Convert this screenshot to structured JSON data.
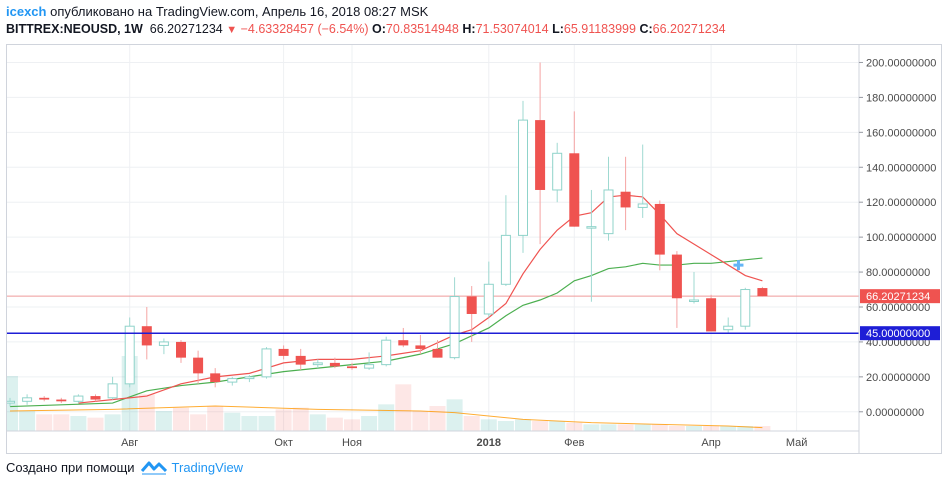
{
  "header": {
    "user": "icexch",
    "published_text": "опубликовано на TradingView.com, Апрель 16, 2018 08:27 MSK"
  },
  "symbol": {
    "name": "BITTREX:NEOUSD, 1W",
    "last": "66.20271234",
    "change": "−4.63328457 (−6.54%)",
    "o_label": "O:",
    "o": "70.83514948",
    "h_label": "H:",
    "h": "71.53074014",
    "l_label": "L:",
    "l": "65.91183999",
    "c_label": "C:",
    "c": "66.20271234"
  },
  "footer": {
    "created_with": "Создано при помощи",
    "brand": "TradingView"
  },
  "colors": {
    "up": "#26a69a",
    "down": "#ef5350",
    "ma_fast": "#ef5350",
    "ma_slow": "#4caf50",
    "support": "#1e1ed6",
    "accent": "#2196f3"
  },
  "price_labels": {
    "current": "66.20271234",
    "support": "45.00000000"
  },
  "chart_data": {
    "type": "candlestick",
    "y_axis": {
      "ticks": [
        0,
        20,
        40,
        60,
        80,
        100,
        120,
        140,
        160,
        180,
        200
      ],
      "tick_labels": [
        "0.00000000",
        "20.00000000",
        "40.00000000",
        "60.00000000",
        "80.00000000",
        "100.00000000",
        "120.00000000",
        "140.00000000",
        "160.00000000",
        "180.00000000",
        "200.00000000"
      ],
      "range": [
        -11,
        210
      ]
    },
    "x_axis": {
      "labels": [
        {
          "text": "Авг",
          "week": 7
        },
        {
          "text": "Окт",
          "week": 16
        },
        {
          "text": "Ноя",
          "week": 20
        },
        {
          "text": "2018",
          "week": 28,
          "bold": true
        },
        {
          "text": "Фев",
          "week": 33
        },
        {
          "text": "Апр",
          "week": 41
        },
        {
          "text": "Май",
          "week": 46
        }
      ]
    },
    "candles": [
      {
        "o": 5,
        "h": 8,
        "l": 3,
        "c": 6
      },
      {
        "o": 6,
        "h": 10,
        "l": 4,
        "c": 8
      },
      {
        "o": 8,
        "h": 9,
        "l": 6,
        "c": 7
      },
      {
        "o": 7,
        "h": 8,
        "l": 5,
        "c": 6
      },
      {
        "o": 6,
        "h": 10,
        "l": 5,
        "c": 9
      },
      {
        "o": 9,
        "h": 10,
        "l": 6,
        "c": 7
      },
      {
        "o": 8,
        "h": 20,
        "l": 7,
        "c": 16
      },
      {
        "o": 16,
        "h": 54,
        "l": 14,
        "c": 49
      },
      {
        "o": 49,
        "h": 60,
        "l": 30,
        "c": 38
      },
      {
        "o": 38,
        "h": 42,
        "l": 33,
        "c": 40
      },
      {
        "o": 40,
        "h": 41,
        "l": 28,
        "c": 31
      },
      {
        "o": 31,
        "h": 35,
        "l": 16,
        "c": 22
      },
      {
        "o": 22,
        "h": 25,
        "l": 14,
        "c": 17
      },
      {
        "o": 17,
        "h": 20,
        "l": 15,
        "c": 19
      },
      {
        "o": 19,
        "h": 21,
        "l": 17,
        "c": 20
      },
      {
        "o": 20,
        "h": 37,
        "l": 19,
        "c": 36
      },
      {
        "o": 36,
        "h": 38,
        "l": 30,
        "c": 32
      },
      {
        "o": 32,
        "h": 36,
        "l": 24,
        "c": 27
      },
      {
        "o": 27,
        "h": 30,
        "l": 25,
        "c": 28
      },
      {
        "o": 28,
        "h": 31,
        "l": 25,
        "c": 26
      },
      {
        "o": 26,
        "h": 28,
        "l": 24,
        "c": 25
      },
      {
        "o": 25,
        "h": 34,
        "l": 24,
        "c": 27
      },
      {
        "o": 27,
        "h": 43,
        "l": 26,
        "c": 41
      },
      {
        "o": 41,
        "h": 48,
        "l": 37,
        "c": 38
      },
      {
        "o": 38,
        "h": 44,
        "l": 33,
        "c": 36
      },
      {
        "o": 36,
        "h": 41,
        "l": 31,
        "c": 31
      },
      {
        "o": 31,
        "h": 77,
        "l": 30,
        "c": 66
      },
      {
        "o": 66,
        "h": 72,
        "l": 40,
        "c": 56
      },
      {
        "o": 56,
        "h": 86,
        "l": 54,
        "c": 73
      },
      {
        "o": 73,
        "h": 124,
        "l": 72,
        "c": 101
      },
      {
        "o": 101,
        "h": 178,
        "l": 91,
        "c": 167
      },
      {
        "o": 167,
        "h": 200,
        "l": 96,
        "c": 127
      },
      {
        "o": 127,
        "h": 154,
        "l": 120,
        "c": 148
      },
      {
        "o": 148,
        "h": 172,
        "l": 106,
        "c": 106
      },
      {
        "o": 106,
        "h": 127,
        "l": 63,
        "c": 106
      },
      {
        "o": 102,
        "h": 146,
        "l": 98,
        "c": 127
      },
      {
        "o": 126,
        "h": 146,
        "l": 104,
        "c": 117
      },
      {
        "o": 117,
        "h": 153,
        "l": 111,
        "c": 119
      },
      {
        "o": 119,
        "h": 121,
        "l": 81,
        "c": 90
      },
      {
        "o": 90,
        "h": 92,
        "l": 48,
        "c": 65
      },
      {
        "o": 64,
        "h": 80,
        "l": 62,
        "c": 64
      },
      {
        "o": 65,
        "h": 67,
        "l": 46,
        "c": 46
      },
      {
        "o": 47,
        "h": 54,
        "l": 45,
        "c": 49
      },
      {
        "o": 49,
        "h": 71,
        "l": 47,
        "c": 70
      },
      {
        "o": 70.84,
        "h": 71.53,
        "l": 65.91,
        "c": 66.2
      }
    ],
    "ma_fast": [
      [
        4,
        5
      ],
      [
        8,
        9
      ],
      [
        10,
        16
      ],
      [
        12,
        20
      ],
      [
        14,
        22
      ],
      [
        16,
        28
      ],
      [
        18,
        30
      ],
      [
        20,
        30
      ],
      [
        22,
        32
      ],
      [
        24,
        35
      ],
      [
        26,
        44
      ],
      [
        27,
        47
      ],
      [
        28,
        54
      ],
      [
        29,
        62
      ],
      [
        30,
        79
      ],
      [
        31,
        93
      ],
      [
        32,
        104
      ],
      [
        33,
        112
      ],
      [
        34,
        114
      ],
      [
        35,
        123
      ],
      [
        36,
        124
      ],
      [
        37,
        123
      ],
      [
        38,
        113
      ],
      [
        39,
        102
      ],
      [
        40,
        96
      ],
      [
        41,
        90
      ],
      [
        42,
        84
      ],
      [
        43,
        78
      ],
      [
        44,
        75
      ]
    ],
    "ma_slow": [
      [
        0,
        3
      ],
      [
        6,
        5
      ],
      [
        8,
        12
      ],
      [
        10,
        15
      ],
      [
        12,
        17
      ],
      [
        14,
        20
      ],
      [
        16,
        23
      ],
      [
        18,
        25
      ],
      [
        20,
        27
      ],
      [
        22,
        29
      ],
      [
        24,
        33
      ],
      [
        26,
        39
      ],
      [
        28,
        48
      ],
      [
        29,
        55
      ],
      [
        30,
        61
      ],
      [
        31,
        64
      ],
      [
        32,
        68
      ],
      [
        33,
        75
      ],
      [
        34,
        78
      ],
      [
        35,
        82
      ],
      [
        36,
        83
      ],
      [
        37,
        85
      ],
      [
        38,
        84
      ],
      [
        39,
        84
      ],
      [
        40,
        85
      ],
      [
        41,
        85
      ],
      [
        42,
        86
      ],
      [
        43,
        87
      ],
      [
        44,
        88
      ]
    ],
    "volume": [
      33,
      12,
      10,
      10,
      9,
      8,
      10,
      45,
      22,
      12,
      14,
      10,
      15,
      11,
      9,
      9,
      13,
      14,
      10,
      8,
      7,
      9,
      16,
      28,
      12,
      15,
      19,
      9,
      7,
      6,
      7,
      6,
      6,
      5,
      4,
      4,
      4,
      4,
      4,
      3,
      3,
      3,
      3,
      3,
      3
    ],
    "volume_ma": [
      [
        0,
        12
      ],
      [
        6,
        13
      ],
      [
        12,
        15
      ],
      [
        18,
        13
      ],
      [
        24,
        12
      ],
      [
        26,
        11
      ],
      [
        28,
        9
      ],
      [
        30,
        7
      ],
      [
        34,
        5
      ],
      [
        38,
        4
      ],
      [
        42,
        3
      ],
      [
        44,
        2
      ]
    ],
    "support_level": 45,
    "current_price": 66.20271234
  }
}
